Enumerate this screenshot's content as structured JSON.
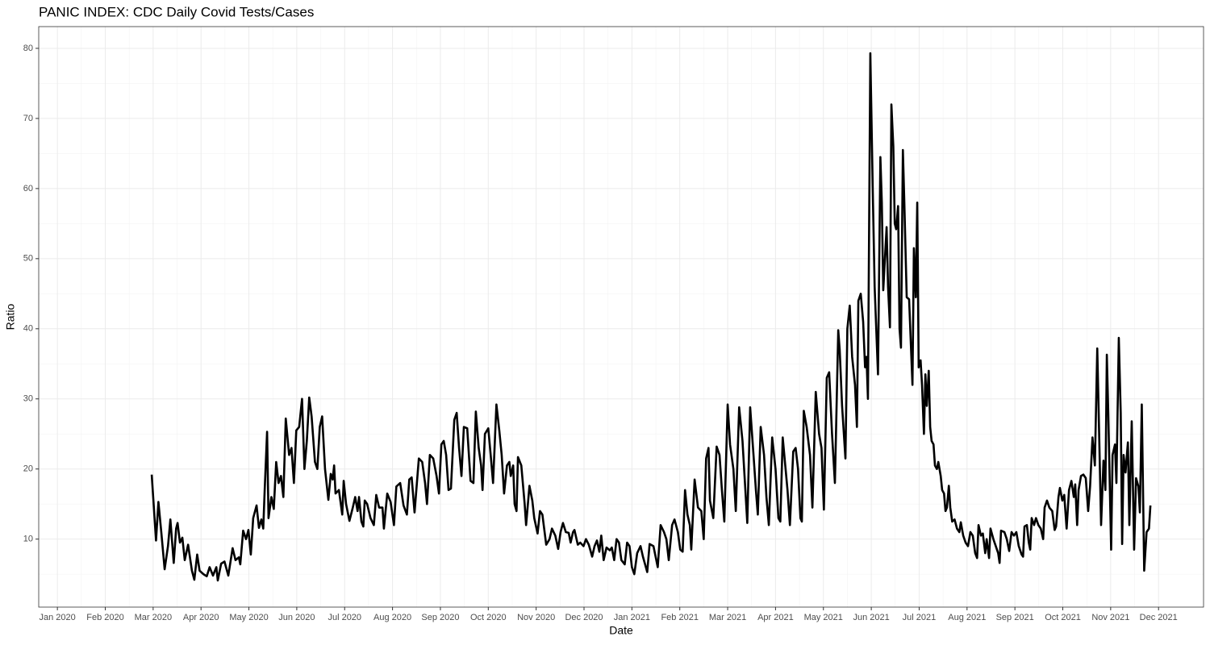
{
  "chart_data": {
    "type": "line",
    "title": "PANIC INDEX: CDC Daily Covid Tests/Cases",
    "xlabel": "Date",
    "ylabel": "Ratio",
    "color": "#000000",
    "grid": true,
    "xlim": [
      -0.39,
      23.94
    ],
    "ylim": [
      0.3,
      83.1
    ],
    "xticks": [
      {
        "value": 0,
        "label": "Jan 2020"
      },
      {
        "value": 1,
        "label": "Feb 2020"
      },
      {
        "value": 2,
        "label": "Mar 2020"
      },
      {
        "value": 3,
        "label": "Apr 2020"
      },
      {
        "value": 4,
        "label": "May 2020"
      },
      {
        "value": 5,
        "label": "Jun 2020"
      },
      {
        "value": 6,
        "label": "Jul 2020"
      },
      {
        "value": 7,
        "label": "Aug 2020"
      },
      {
        "value": 8,
        "label": "Sep 2020"
      },
      {
        "value": 9,
        "label": "Oct 2020"
      },
      {
        "value": 10,
        "label": "Nov 2020"
      },
      {
        "value": 11,
        "label": "Dec 2020"
      },
      {
        "value": 12,
        "label": "Jan 2021"
      },
      {
        "value": 13,
        "label": "Feb 2021"
      },
      {
        "value": 14,
        "label": "Mar 2021"
      },
      {
        "value": 15,
        "label": "Apr 2021"
      },
      {
        "value": 16,
        "label": "May 2021"
      },
      {
        "value": 17,
        "label": "Jun 2021"
      },
      {
        "value": 18,
        "label": "Jul 2021"
      },
      {
        "value": 19,
        "label": "Aug 2021"
      },
      {
        "value": 20,
        "label": "Sep 2021"
      },
      {
        "value": 21,
        "label": "Oct 2021"
      },
      {
        "value": 22,
        "label": "Nov 2021"
      },
      {
        "value": 23,
        "label": "Dec 2021"
      }
    ],
    "yticks": [
      10,
      20,
      30,
      40,
      50,
      60,
      70,
      80
    ],
    "x": [
      1.97,
      2.06,
      2.11,
      2.17,
      2.24,
      2.31,
      2.36,
      2.43,
      2.48,
      2.51,
      2.56,
      2.61,
      2.66,
      2.73,
      2.81,
      2.86,
      2.92,
      2.97,
      3.05,
      3.12,
      3.18,
      3.25,
      3.32,
      3.35,
      3.42,
      3.49,
      3.57,
      3.66,
      3.72,
      3.79,
      3.82,
      3.88,
      3.94,
      3.99,
      4.04,
      4.09,
      4.16,
      4.21,
      4.26,
      4.3,
      4.33,
      4.38,
      4.41,
      4.47,
      4.52,
      4.57,
      4.62,
      4.67,
      4.72,
      4.77,
      4.84,
      4.89,
      4.94,
      4.99,
      5.05,
      5.11,
      5.16,
      5.21,
      5.26,
      5.31,
      5.38,
      5.43,
      5.48,
      5.53,
      5.59,
      5.66,
      5.71,
      5.75,
      5.78,
      5.81,
      5.88,
      5.95,
      5.98,
      6.03,
      6.1,
      6.17,
      6.22,
      6.27,
      6.3,
      6.35,
      6.39,
      6.42,
      6.47,
      6.54,
      6.61,
      6.66,
      6.72,
      6.79,
      6.82,
      6.89,
      6.96,
      7.03,
      7.08,
      7.16,
      7.23,
      7.3,
      7.35,
      7.4,
      7.46,
      7.55,
      7.62,
      7.68,
      7.72,
      7.78,
      7.85,
      7.92,
      7.97,
      8.02,
      8.07,
      8.12,
      8.17,
      8.22,
      8.29,
      8.34,
      8.39,
      8.44,
      8.49,
      8.56,
      8.63,
      8.69,
      8.74,
      8.8,
      8.85,
      8.88,
      8.93,
      9.0,
      9.05,
      9.1,
      9.17,
      9.23,
      9.28,
      9.33,
      9.39,
      9.44,
      9.47,
      9.52,
      9.55,
      9.59,
      9.62,
      9.69,
      9.76,
      9.79,
      9.86,
      9.92,
      9.96,
      10.03,
      10.08,
      10.13,
      10.21,
      10.28,
      10.33,
      10.4,
      10.46,
      10.51,
      10.56,
      10.62,
      10.68,
      10.72,
      10.77,
      10.8,
      10.87,
      10.92,
      10.99,
      11.04,
      11.1,
      11.17,
      11.22,
      11.27,
      11.32,
      11.36,
      11.41,
      11.47,
      11.54,
      11.58,
      11.63,
      11.68,
      11.73,
      11.78,
      11.85,
      11.9,
      11.95,
      12.0,
      12.05,
      12.11,
      12.18,
      12.23,
      12.32,
      12.37,
      12.45,
      12.54,
      12.6,
      12.67,
      12.72,
      12.77,
      12.84,
      12.89,
      12.96,
      13.01,
      13.06,
      13.11,
      13.16,
      13.21,
      13.24,
      13.31,
      13.38,
      13.45,
      13.5,
      13.55,
      13.6,
      13.63,
      13.7,
      13.77,
      13.83,
      13.88,
      13.93,
      14.0,
      14.05,
      14.12,
      14.17,
      14.24,
      14.31,
      14.37,
      14.41,
      14.47,
      14.54,
      14.59,
      14.63,
      14.69,
      14.76,
      14.81,
      14.86,
      14.93,
      15.0,
      15.06,
      15.1,
      15.15,
      15.21,
      15.25,
      15.3,
      15.37,
      15.42,
      15.47,
      15.52,
      15.55,
      15.59,
      15.65,
      15.72,
      15.77,
      15.84,
      15.91,
      15.96,
      16.01,
      16.07,
      16.12,
      16.18,
      16.24,
      16.31,
      16.34,
      16.39,
      16.46,
      16.5,
      16.55,
      16.6,
      16.66,
      16.7,
      16.73,
      16.78,
      16.83,
      16.87,
      16.9,
      16.93,
      16.98,
      17.03,
      17.07,
      17.14,
      17.19,
      17.22,
      17.25,
      17.32,
      17.35,
      17.39,
      17.42,
      17.46,
      17.49,
      17.52,
      17.56,
      17.59,
      17.62,
      17.66,
      17.69,
      17.74,
      17.79,
      17.86,
      17.89,
      17.93,
      17.96,
      17.99,
      18.03,
      18.06,
      18.1,
      18.13,
      18.16,
      18.2,
      18.23,
      18.26,
      18.3,
      18.33,
      18.37,
      18.4,
      18.45,
      18.48,
      18.52,
      18.55,
      18.58,
      18.62,
      18.65,
      18.69,
      18.74,
      18.79,
      18.84,
      18.87,
      18.92,
      18.97,
      19.02,
      19.07,
      19.12,
      19.17,
      19.21,
      19.24,
      19.29,
      19.33,
      19.38,
      19.41,
      19.46,
      19.49,
      19.55,
      19.6,
      19.65,
      19.68,
      19.71,
      19.78,
      19.83,
      19.88,
      19.93,
      19.98,
      20.03,
      20.08,
      20.14,
      20.17,
      20.2,
      20.25,
      20.29,
      20.32,
      20.35,
      20.4,
      20.44,
      20.49,
      20.54,
      20.59,
      20.62,
      20.67,
      20.72,
      20.78,
      20.83,
      20.86,
      20.91,
      20.94,
      20.99,
      21.03,
      21.08,
      21.13,
      21.18,
      21.23,
      21.26,
      21.3,
      21.33,
      21.38,
      21.43,
      21.48,
      21.53,
      21.57,
      21.62,
      21.67,
      21.72,
      21.75,
      21.8,
      21.85,
      21.89,
      21.92,
      21.95,
      22.01,
      22.04,
      22.09,
      22.12,
      22.17,
      22.21,
      22.24,
      22.27,
      22.31,
      22.36,
      22.39,
      22.44,
      22.49,
      22.53,
      22.58,
      22.61,
      22.65,
      22.7,
      22.75,
      22.8,
      22.83
    ],
    "values": [
      19.2,
      9.8,
      15.3,
      11,
      5.7,
      9,
      12.8,
      6.6,
      11.5,
      12.3,
      9.5,
      10.2,
      7,
      9.2,
      5.5,
      4.2,
      7.8,
      5.5,
      5,
      4.7,
      6,
      4.8,
      6,
      4.1,
      6.5,
      6.8,
      4.8,
      8.7,
      7,
      7.4,
      6.4,
      11.2,
      10,
      11.3,
      7.8,
      13,
      14.8,
      11.6,
      12.8,
      11.5,
      17,
      25.3,
      13,
      16,
      14.3,
      21,
      18,
      19,
      16,
      27.2,
      22,
      23,
      18,
      25.5,
      26,
      30,
      20,
      24,
      30.2,
      27.5,
      21,
      20,
      26,
      27.5,
      20,
      15.6,
      19.3,
      18.5,
      20.5,
      16.5,
      17,
      13.5,
      18.3,
      15,
      12.6,
      14.5,
      16,
      14,
      16,
      12.5,
      11.8,
      15.5,
      15,
      13,
      12,
      16.3,
      14.5,
      14.5,
      11.5,
      16.5,
      15.3,
      12,
      17.5,
      18,
      14.8,
      13.5,
      18.5,
      18.8,
      13.8,
      21.5,
      21,
      18,
      15,
      22,
      21.5,
      19,
      16.5,
      23.5,
      24,
      22,
      17,
      17.2,
      27,
      28,
      23,
      19,
      26,
      25.8,
      18.3,
      18,
      28.2,
      23,
      20.5,
      17,
      25,
      25.8,
      22,
      18,
      29.2,
      25.5,
      22,
      16.5,
      20.5,
      21,
      19,
      20.5,
      15,
      14,
      21.7,
      20.5,
      15,
      12,
      17.6,
      15.5,
      13,
      10.8,
      14,
      13.5,
      9.2,
      10,
      11.5,
      10.5,
      8.6,
      11,
      12.3,
      11,
      10.9,
      9.5,
      11,
      11.3,
      9.2,
      9.5,
      9,
      10,
      9.2,
      7.5,
      9,
      9.8,
      8.2,
      10.5,
      7,
      8.8,
      8.4,
      8.8,
      7,
      10,
      9.5,
      7,
      6.4,
      9.5,
      9,
      6,
      5,
      8,
      9,
      7.5,
      5.3,
      9.3,
      9,
      6,
      12,
      11,
      10,
      7,
      12,
      12.8,
      11,
      8.5,
      8.2,
      17,
      13.5,
      12,
      8.5,
      18.5,
      14.5,
      14,
      10,
      21.5,
      23,
      15.5,
      13,
      23.2,
      22,
      17,
      12.5,
      29.2,
      23.5,
      20,
      14,
      28.8,
      24,
      17,
      12.3,
      28.8,
      22,
      17,
      13.5,
      26,
      22,
      16,
      12,
      24.5,
      20,
      13,
      12.5,
      24.5,
      20,
      17,
      12,
      22.5,
      23,
      20,
      13,
      12.5,
      28.3,
      26,
      22,
      14.5,
      31,
      25,
      23,
      14.2,
      33,
      33.8,
      25,
      18,
      39.8,
      37,
      29,
      21.5,
      40,
      43.3,
      36,
      32,
      26,
      44,
      45,
      41,
      34.5,
      36,
      30,
      79.3,
      60,
      46,
      33.5,
      64.5,
      58,
      45.5,
      54.5,
      46,
      40.2,
      72,
      66,
      55,
      54.2,
      57.5,
      40,
      37.3,
      65.5,
      58,
      44.5,
      44.2,
      32,
      51.5,
      44.5,
      58,
      34.5,
      35.5,
      32,
      25,
      33.5,
      29,
      34,
      26,
      24,
      23.5,
      20.5,
      20,
      21,
      19,
      17,
      16.5,
      14,
      14.5,
      17.6,
      14.5,
      12.5,
      12.8,
      11.5,
      11,
      12.4,
      10.5,
      9.5,
      9,
      11,
      10.5,
      8,
      7.3,
      12,
      10.5,
      10.8,
      8,
      10,
      7.3,
      11.5,
      10,
      9,
      8,
      6.6,
      11.2,
      11,
      10,
      8.3,
      11,
      10.5,
      11,
      9,
      7.8,
      7.5,
      11.8,
      12,
      9.5,
      8.5,
      13,
      12,
      13,
      12,
      11.5,
      10,
      14.5,
      15.5,
      14.5,
      14,
      11.3,
      11.8,
      16,
      17.3,
      15.5,
      16.3,
      11.5,
      17,
      18.3,
      16,
      17.8,
      12,
      17,
      19,
      19.2,
      18.7,
      14,
      17.5,
      24.5,
      20.5,
      37.2,
      28,
      12,
      21.2,
      17,
      36.3,
      28,
      8.5,
      22,
      23.5,
      18,
      38.7,
      28,
      9.3,
      22,
      19.5,
      23.8,
      12,
      26.8,
      8.5,
      18.7,
      17.5,
      13.8,
      29.2,
      5.5,
      11,
      11.5,
      14.8
    ]
  }
}
